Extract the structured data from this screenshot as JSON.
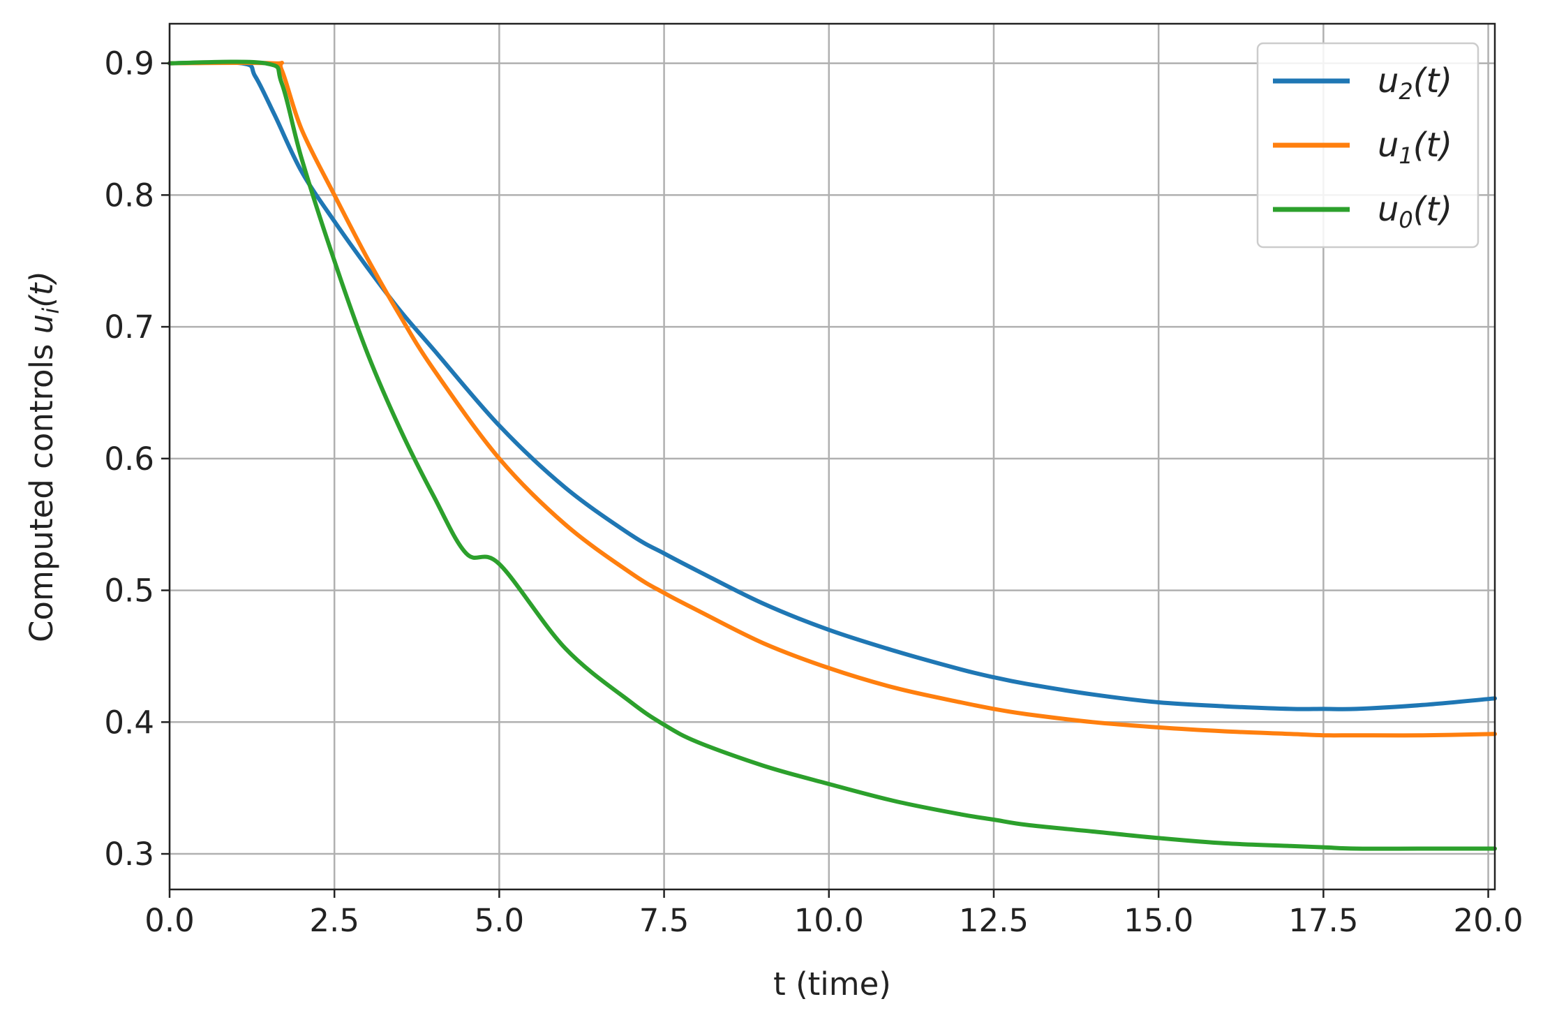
{
  "chart_data": {
    "type": "line",
    "title": "",
    "xlabel": "t (time)",
    "ylabel": {
      "text": "Computed controls ",
      "var": "u",
      "sub": "i",
      "tail": "(t)"
    },
    "xlim": [
      0,
      20.1
    ],
    "ylim": [
      0.273,
      0.93
    ],
    "xticks": [
      0,
      2.5,
      5,
      7.5,
      10,
      12.5,
      15,
      17.5,
      20
    ],
    "xtick_labels": [
      "0.0",
      "2.5",
      "5.0",
      "7.5",
      "10.0",
      "12.5",
      "15.0",
      "17.5",
      "20.0"
    ],
    "yticks": [
      0.3,
      0.4,
      0.5,
      0.6,
      0.7,
      0.8,
      0.9
    ],
    "ytick_labels": [
      "0.3",
      "0.4",
      "0.5",
      "0.6",
      "0.7",
      "0.8",
      "0.9"
    ],
    "grid": true,
    "legend_position": "top-right",
    "series": [
      {
        "name": "u2(t)",
        "legend": {
          "var": "u",
          "sub": "2",
          "tail": "(t)"
        },
        "color": "#1f77b4",
        "x": [
          0,
          1.1,
          1.3,
          1.6,
          2.0,
          2.5,
          3.0,
          3.5,
          4.0,
          5.0,
          6.0,
          7.0,
          7.5,
          8.0,
          9.0,
          10.0,
          11.0,
          12.0,
          12.5,
          13.0,
          14.0,
          15.0,
          16.0,
          17.0,
          17.5,
          18.0,
          19.0,
          20.1
        ],
        "y": [
          0.9,
          0.9,
          0.89,
          0.86,
          0.818,
          0.78,
          0.745,
          0.712,
          0.683,
          0.625,
          0.578,
          0.542,
          0.528,
          0.515,
          0.49,
          0.47,
          0.454,
          0.44,
          0.434,
          0.429,
          0.421,
          0.415,
          0.412,
          0.41,
          0.41,
          0.41,
          0.413,
          0.418
        ]
      },
      {
        "name": "u1(t)",
        "legend": {
          "var": "u",
          "sub": "1",
          "tail": "(t)"
        },
        "color": "#ff7f0e",
        "x": [
          0,
          1.55,
          1.7,
          2.0,
          2.5,
          3.0,
          3.5,
          4.0,
          5.0,
          6.0,
          7.0,
          7.5,
          8.0,
          9.0,
          10.0,
          11.0,
          12.0,
          12.5,
          13.0,
          14.0,
          15.0,
          16.0,
          17.0,
          17.5,
          18.0,
          19.0,
          20.1
        ],
        "y": [
          0.9,
          0.9,
          0.895,
          0.85,
          0.8,
          0.752,
          0.708,
          0.668,
          0.6,
          0.55,
          0.513,
          0.498,
          0.485,
          0.46,
          0.441,
          0.426,
          0.415,
          0.41,
          0.406,
          0.4,
          0.396,
          0.393,
          0.391,
          0.39,
          0.39,
          0.39,
          0.391
        ]
      },
      {
        "name": "u0(t)",
        "legend": {
          "var": "u",
          "sub": "0",
          "tail": "(t)"
        },
        "color": "#2ca02c",
        "x": [
          0,
          1.45,
          1.7,
          2.0,
          2.5,
          3.0,
          3.5,
          4.0,
          4.5,
          5.0,
          6.0,
          7.0,
          7.5,
          8.0,
          9.0,
          10.0,
          11.0,
          12.0,
          12.5,
          13.0,
          14.0,
          15.0,
          16.0,
          17.0,
          17.5,
          18.0,
          19.0,
          20.1
        ],
        "y": [
          0.9,
          0.9,
          0.885,
          0.828,
          0.75,
          0.68,
          0.622,
          0.572,
          0.528,
          0.52,
          0.456,
          0.415,
          0.398,
          0.385,
          0.367,
          0.353,
          0.34,
          0.33,
          0.326,
          0.322,
          0.317,
          0.312,
          0.308,
          0.306,
          0.305,
          0.304,
          0.304,
          0.304
        ]
      }
    ]
  }
}
